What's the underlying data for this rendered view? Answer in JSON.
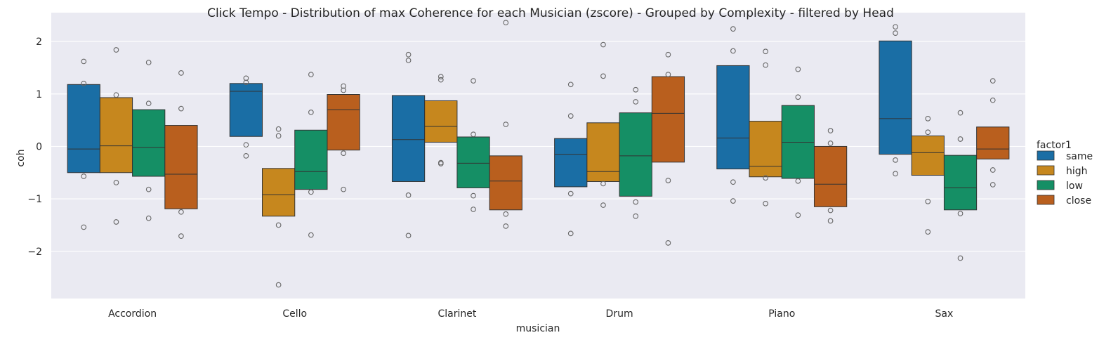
{
  "chart_data": {
    "type": "box",
    "title": "Click Tempo - Distribution of max Coherence for each Musician (zscore) - Grouped by Complexity - filtered by Head",
    "xlabel": "musician",
    "ylabel": "coh",
    "ylim": [
      -2.9,
      2.55
    ],
    "yticks": [
      -2,
      -1,
      0,
      1,
      2
    ],
    "ytick_labels": [
      "−2",
      "−1",
      "0",
      "1",
      "2"
    ],
    "grid": true,
    "legend": {
      "title": "factor1",
      "placement": "right"
    },
    "categories": [
      "Accordion",
      "Cello",
      "Clarinet",
      "Drum",
      "Piano",
      "Sax"
    ],
    "series": [
      {
        "name": "same",
        "color": "#1a6ea5",
        "boxes": [
          {
            "q1": -0.5,
            "median": -0.05,
            "q3": 1.18,
            "outliers": [
              1.62,
              1.2,
              -0.57,
              -1.54
            ]
          },
          {
            "q1": 0.19,
            "median": 1.05,
            "q3": 1.2,
            "outliers": [
              1.3,
              1.22,
              0.03,
              -0.18
            ]
          },
          {
            "q1": -0.67,
            "median": 0.13,
            "q3": 0.97,
            "outliers": [
              1.75,
              1.64,
              -0.93,
              -1.7
            ]
          },
          {
            "q1": -0.77,
            "median": -0.15,
            "q3": 0.15,
            "outliers": [
              1.18,
              0.58,
              -0.9,
              -1.66
            ]
          },
          {
            "q1": -0.43,
            "median": 0.16,
            "q3": 1.54,
            "outliers": [
              2.24,
              1.82,
              -0.68,
              -1.04
            ]
          },
          {
            "q1": -0.15,
            "median": 0.53,
            "q3": 2.01,
            "outliers": [
              2.28,
              2.16,
              -0.26,
              -0.52
            ]
          }
        ]
      },
      {
        "name": "high",
        "color": "#c6871e",
        "boxes": [
          {
            "q1": -0.5,
            "median": 0.01,
            "q3": 0.93,
            "outliers": [
              1.84,
              0.98,
              -0.69,
              -1.44
            ]
          },
          {
            "q1": -1.33,
            "median": -0.92,
            "q3": -0.42,
            "outliers": [
              0.33,
              0.2,
              -1.5,
              -2.64
            ]
          },
          {
            "q1": 0.08,
            "median": 0.38,
            "q3": 0.87,
            "outliers": [
              1.33,
              1.27,
              -0.31,
              -0.33
            ]
          },
          {
            "q1": -0.67,
            "median": -0.48,
            "q3": 0.45,
            "outliers": [
              1.94,
              1.34,
              -0.71,
              -1.12
            ]
          },
          {
            "q1": -0.58,
            "median": -0.38,
            "q3": 0.48,
            "outliers": [
              1.81,
              1.55,
              -0.6,
              -1.09
            ]
          },
          {
            "q1": -0.55,
            "median": -0.12,
            "q3": 0.2,
            "outliers": [
              0.53,
              0.27,
              -1.05,
              -1.63
            ]
          }
        ]
      },
      {
        "name": "low",
        "color": "#158f65",
        "boxes": [
          {
            "q1": -0.57,
            "median": -0.02,
            "q3": 0.7,
            "outliers": [
              1.6,
              0.82,
              -0.82,
              -1.37
            ]
          },
          {
            "q1": -0.82,
            "median": -0.48,
            "q3": 0.31,
            "outliers": [
              1.37,
              0.65,
              -0.87,
              -1.69
            ]
          },
          {
            "q1": -0.79,
            "median": -0.32,
            "q3": 0.18,
            "outliers": [
              1.25,
              0.23,
              -0.94,
              -1.2
            ]
          },
          {
            "q1": -0.95,
            "median": -0.18,
            "q3": 0.64,
            "outliers": [
              1.08,
              0.85,
              -1.06,
              -1.33
            ]
          },
          {
            "q1": -0.61,
            "median": 0.08,
            "q3": 0.78,
            "outliers": [
              1.47,
              0.94,
              -0.66,
              -1.31
            ]
          },
          {
            "q1": -1.21,
            "median": -0.79,
            "q3": -0.17,
            "outliers": [
              0.64,
              0.14,
              -1.28,
              -2.13
            ]
          }
        ]
      },
      {
        "name": "close",
        "color": "#b95f1e",
        "boxes": [
          {
            "q1": -1.19,
            "median": -0.53,
            "q3": 0.4,
            "outliers": [
              1.4,
              0.72,
              -1.25,
              -1.71
            ]
          },
          {
            "q1": -0.07,
            "median": 0.7,
            "q3": 0.99,
            "outliers": [
              1.15,
              1.07,
              -0.13,
              -0.82
            ]
          },
          {
            "q1": -1.21,
            "median": -0.66,
            "q3": -0.18,
            "outliers": [
              2.36,
              0.42,
              -1.29,
              -1.52
            ]
          },
          {
            "q1": -0.3,
            "median": 0.63,
            "q3": 1.33,
            "outliers": [
              1.75,
              1.37,
              -0.65,
              -1.84
            ]
          },
          {
            "q1": -1.15,
            "median": -0.72,
            "q3": 0.0,
            "outliers": [
              0.3,
              0.06,
              -1.22,
              -1.42
            ]
          },
          {
            "q1": -0.24,
            "median": -0.05,
            "q3": 0.37,
            "outliers": [
              1.25,
              0.88,
              -0.45,
              -0.73
            ]
          }
        ]
      }
    ]
  }
}
